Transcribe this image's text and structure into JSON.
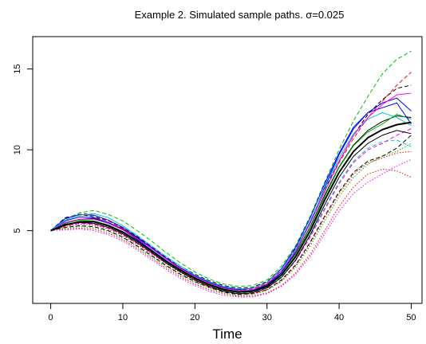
{
  "chart_data": {
    "type": "line",
    "title": "Example 2. Simulated sample paths. σ=0.025",
    "xlabel": "Time",
    "ylabel": "",
    "xlim": [
      -2.5,
      51.5
    ],
    "ylim": [
      0.5,
      17.0
    ],
    "x_ticks": [
      0,
      10,
      20,
      30,
      40,
      50
    ],
    "y_ticks": [
      5,
      10,
      15
    ],
    "grid": false,
    "legend": "none",
    "mean_curve": {
      "style": "solid",
      "color": "#000000",
      "x": [
        0,
        2,
        4,
        6,
        8,
        10,
        12,
        14,
        16,
        18,
        20,
        22,
        24,
        26,
        28,
        30,
        32,
        34,
        36,
        38,
        40,
        42,
        44,
        46,
        48,
        50
      ],
      "y": [
        5.0,
        5.35,
        5.55,
        5.55,
        5.3,
        4.9,
        4.35,
        3.75,
        3.1,
        2.55,
        2.05,
        1.65,
        1.35,
        1.2,
        1.25,
        1.55,
        2.25,
        3.4,
        5.0,
        6.9,
        8.6,
        9.9,
        10.75,
        11.25,
        11.55,
        11.7
      ]
    },
    "series_colors": [
      "#000000",
      "#ff0000",
      "#00bb00",
      "#0000ff",
      "#00cccc",
      "#ff00ff"
    ],
    "series": [
      {
        "color": "#000000",
        "style": "solid",
        "x": [
          0,
          2,
          4,
          6,
          8,
          10,
          12,
          14,
          16,
          18,
          20,
          22,
          24,
          26,
          28,
          30,
          32,
          34,
          36,
          38,
          40,
          42,
          44,
          46,
          48,
          50
        ],
        "y": [
          5.0,
          5.5,
          5.7,
          5.75,
          5.5,
          5.1,
          4.55,
          3.9,
          3.25,
          2.65,
          2.15,
          1.75,
          1.45,
          1.3,
          1.35,
          1.65,
          2.4,
          3.6,
          5.25,
          7.2,
          8.95,
          10.3,
          11.2,
          11.75,
          12.1,
          12.0
        ]
      },
      {
        "color": "#000000",
        "style": "dashed",
        "x": [
          0,
          2,
          4,
          6,
          8,
          10,
          12,
          14,
          16,
          18,
          20,
          22,
          24,
          26,
          28,
          30,
          32,
          34,
          36,
          38,
          40,
          42,
          44,
          46,
          48,
          50
        ],
        "y": [
          5.0,
          5.8,
          6.0,
          5.85,
          5.6,
          5.2,
          4.65,
          4.0,
          3.35,
          2.8,
          2.3,
          1.9,
          1.6,
          1.45,
          1.5,
          1.85,
          2.65,
          3.9,
          5.6,
          7.55,
          9.3,
          10.9,
          12.2,
          13.1,
          13.8,
          14.0
        ]
      },
      {
        "color": "#000000",
        "style": "dashed",
        "x": [
          0,
          2,
          4,
          6,
          8,
          10,
          12,
          14,
          16,
          18,
          20,
          22,
          24,
          26,
          28,
          30,
          32,
          34,
          36,
          38,
          40,
          42,
          44,
          46,
          48,
          50
        ],
        "y": [
          5.0,
          5.2,
          5.3,
          5.25,
          5.0,
          4.6,
          4.05,
          3.45,
          2.85,
          2.3,
          1.85,
          1.5,
          1.2,
          1.05,
          1.1,
          1.35,
          1.95,
          2.9,
          4.3,
          5.9,
          7.4,
          8.6,
          9.3,
          9.6,
          10.1,
          10.9
        ]
      },
      {
        "color": "#ff0000",
        "style": "dashed",
        "x": [
          0,
          2,
          4,
          6,
          8,
          10,
          12,
          14,
          16,
          18,
          20,
          22,
          24,
          26,
          28,
          30,
          32,
          34,
          36,
          38,
          40,
          42,
          44,
          46,
          48,
          50
        ],
        "y": [
          5.0,
          5.6,
          6.1,
          5.95,
          5.6,
          5.15,
          4.6,
          3.95,
          3.3,
          2.7,
          2.2,
          1.8,
          1.5,
          1.35,
          1.4,
          1.75,
          2.55,
          3.8,
          5.5,
          7.45,
          9.2,
          10.7,
          12.0,
          13.0,
          14.0,
          14.8
        ]
      },
      {
        "color": "#ff0000",
        "style": "dotted",
        "x": [
          0,
          2,
          4,
          6,
          8,
          10,
          12,
          14,
          16,
          18,
          20,
          22,
          24,
          26,
          28,
          30,
          32,
          34,
          36,
          38,
          40,
          42,
          44,
          46,
          48,
          50
        ],
        "y": [
          5.0,
          5.1,
          5.15,
          5.1,
          4.85,
          4.45,
          3.9,
          3.3,
          2.7,
          2.15,
          1.7,
          1.35,
          1.1,
          0.95,
          0.95,
          1.15,
          1.6,
          2.4,
          3.55,
          5.0,
          6.5,
          7.7,
          8.5,
          8.8,
          8.7,
          8.3
        ]
      },
      {
        "color": "#ff0000",
        "style": "dotted",
        "x": [
          0,
          2,
          4,
          6,
          8,
          10,
          12,
          14,
          16,
          18,
          20,
          22,
          24,
          26,
          28,
          30,
          32,
          34,
          36,
          38,
          40,
          42,
          44,
          46,
          48,
          50
        ],
        "y": [
          5.0,
          5.25,
          5.4,
          5.35,
          5.1,
          4.7,
          4.15,
          3.55,
          2.95,
          2.4,
          1.9,
          1.5,
          1.25,
          1.1,
          1.1,
          1.35,
          1.9,
          2.85,
          4.2,
          5.8,
          7.3,
          8.5,
          9.2,
          9.5,
          9.8,
          9.9
        ]
      },
      {
        "color": "#00bb00",
        "style": "dashed",
        "x": [
          0,
          2,
          4,
          6,
          8,
          10,
          12,
          14,
          16,
          18,
          20,
          22,
          24,
          26,
          28,
          30,
          32,
          34,
          36,
          38,
          40,
          42,
          44,
          46,
          48,
          50
        ],
        "y": [
          5.0,
          5.7,
          6.1,
          6.25,
          6.0,
          5.6,
          5.0,
          4.35,
          3.65,
          3.0,
          2.45,
          2.0,
          1.7,
          1.55,
          1.6,
          1.95,
          2.8,
          4.1,
          5.9,
          8.0,
          10.0,
          11.8,
          13.3,
          14.7,
          15.6,
          16.1
        ]
      },
      {
        "color": "#00bb00",
        "style": "solid",
        "x": [
          0,
          2,
          4,
          6,
          8,
          10,
          12,
          14,
          16,
          18,
          20,
          22,
          24,
          26,
          28,
          30,
          32,
          34,
          36,
          38,
          40,
          42,
          44,
          46,
          48,
          50
        ],
        "y": [
          5.0,
          5.45,
          5.65,
          5.6,
          5.35,
          4.95,
          4.4,
          3.8,
          3.15,
          2.6,
          2.1,
          1.7,
          1.4,
          1.25,
          1.3,
          1.6,
          2.35,
          3.55,
          5.2,
          7.1,
          8.9,
          10.25,
          11.1,
          11.6,
          12.2,
          11.9
        ]
      },
      {
        "color": "#00bb00",
        "style": "dotted",
        "x": [
          0,
          2,
          4,
          6,
          8,
          10,
          12,
          14,
          16,
          18,
          20,
          22,
          24,
          26,
          28,
          30,
          32,
          34,
          36,
          38,
          40,
          42,
          44,
          46,
          48,
          50
        ],
        "y": [
          5.0,
          5.15,
          5.25,
          5.2,
          4.95,
          4.55,
          4.0,
          3.4,
          2.8,
          2.25,
          1.8,
          1.45,
          1.15,
          1.0,
          1.05,
          1.3,
          1.85,
          2.75,
          4.05,
          5.6,
          7.1,
          8.3,
          9.1,
          9.6,
          9.9,
          10.4
        ]
      },
      {
        "color": "#0000ff",
        "style": "solid",
        "x": [
          0,
          2,
          4,
          6,
          8,
          10,
          12,
          14,
          16,
          18,
          20,
          22,
          24,
          26,
          28,
          30,
          32,
          34,
          36,
          38,
          40,
          42,
          44,
          46,
          48,
          50
        ],
        "y": [
          5.0,
          5.75,
          6.0,
          5.95,
          5.65,
          5.2,
          4.6,
          3.95,
          3.3,
          2.7,
          2.2,
          1.8,
          1.5,
          1.35,
          1.45,
          1.8,
          2.65,
          4.0,
          5.8,
          7.9,
          9.8,
          11.4,
          12.3,
          12.6,
          12.9,
          11.6
        ]
      },
      {
        "color": "#0000ff",
        "style": "solid",
        "x": [
          0,
          2,
          4,
          6,
          8,
          10,
          12,
          14,
          16,
          18,
          20,
          22,
          24,
          26,
          28,
          30,
          32,
          34,
          36,
          38,
          40,
          42,
          44,
          46,
          48,
          50
        ],
        "y": [
          5.0,
          5.6,
          5.85,
          5.8,
          5.5,
          5.05,
          4.45,
          3.8,
          3.15,
          2.55,
          2.05,
          1.65,
          1.35,
          1.2,
          1.3,
          1.6,
          2.4,
          3.7,
          5.5,
          7.7,
          9.7,
          11.3,
          12.3,
          12.9,
          13.2,
          12.4
        ]
      },
      {
        "color": "#00cccc",
        "style": "solid",
        "x": [
          0,
          2,
          4,
          6,
          8,
          10,
          12,
          14,
          16,
          18,
          20,
          22,
          24,
          26,
          28,
          30,
          32,
          34,
          36,
          38,
          40,
          42,
          44,
          46,
          48,
          50
        ],
        "y": [
          5.0,
          5.65,
          5.95,
          6.05,
          5.8,
          5.3,
          4.7,
          4.05,
          3.4,
          2.8,
          2.25,
          1.85,
          1.55,
          1.4,
          1.45,
          1.8,
          2.6,
          3.85,
          5.6,
          7.6,
          9.5,
          11.0,
          11.9,
          12.3,
          12.0,
          11.5
        ]
      },
      {
        "color": "#00cccc",
        "style": "dashed",
        "x": [
          0,
          2,
          4,
          6,
          8,
          10,
          12,
          14,
          16,
          18,
          20,
          22,
          24,
          26,
          28,
          30,
          32,
          34,
          36,
          38,
          40,
          42,
          44,
          46,
          48,
          50
        ],
        "y": [
          5.0,
          5.35,
          5.5,
          5.45,
          5.2,
          4.8,
          4.25,
          3.65,
          3.05,
          2.5,
          2.0,
          1.6,
          1.3,
          1.15,
          1.2,
          1.5,
          2.15,
          3.2,
          4.7,
          6.4,
          8.0,
          9.3,
          10.1,
          10.5,
          10.6,
          10.2
        ]
      },
      {
        "color": "#ff00ff",
        "style": "solid",
        "x": [
          0,
          2,
          4,
          6,
          8,
          10,
          12,
          14,
          16,
          18,
          20,
          22,
          24,
          26,
          28,
          30,
          32,
          34,
          36,
          38,
          40,
          42,
          44,
          46,
          48,
          50
        ],
        "y": [
          5.0,
          5.5,
          5.7,
          5.7,
          5.45,
          5.05,
          4.5,
          3.9,
          3.25,
          2.65,
          2.15,
          1.75,
          1.45,
          1.3,
          1.35,
          1.7,
          2.5,
          3.75,
          5.45,
          7.4,
          9.3,
          10.9,
          12.0,
          12.8,
          13.4,
          13.5
        ]
      },
      {
        "color": "#ff00ff",
        "style": "dashed",
        "x": [
          0,
          2,
          4,
          6,
          8,
          10,
          12,
          14,
          16,
          18,
          20,
          22,
          24,
          26,
          28,
          30,
          32,
          34,
          36,
          38,
          40,
          42,
          44,
          46,
          48,
          50
        ],
        "y": [
          5.0,
          5.3,
          5.45,
          5.4,
          5.15,
          4.75,
          4.2,
          3.6,
          3.0,
          2.45,
          1.95,
          1.55,
          1.25,
          1.1,
          1.15,
          1.45,
          2.1,
          3.15,
          4.6,
          6.3,
          7.9,
          9.2,
          10.0,
          10.4,
          10.9,
          11.3
        ]
      },
      {
        "color": "#ff00ff",
        "style": "dotted",
        "x": [
          0,
          2,
          4,
          6,
          8,
          10,
          12,
          14,
          16,
          18,
          20,
          22,
          24,
          26,
          28,
          30,
          32,
          34,
          36,
          38,
          40,
          42,
          44,
          46,
          48,
          50
        ],
        "y": [
          5.0,
          5.05,
          5.1,
          5.0,
          4.75,
          4.35,
          3.8,
          3.2,
          2.6,
          2.05,
          1.6,
          1.25,
          1.0,
          0.9,
          0.9,
          1.1,
          1.55,
          2.3,
          3.4,
          4.8,
          6.2,
          7.3,
          8.0,
          8.5,
          9.0,
          9.4
        ]
      },
      {
        "color": "#000000",
        "style": "solid",
        "x": [
          0,
          2,
          4,
          6,
          8,
          10,
          12,
          14,
          16,
          18,
          20,
          22,
          24,
          26,
          28,
          30,
          32,
          34,
          36,
          38,
          40,
          42,
          44,
          46,
          48,
          50
        ],
        "y": [
          5.0,
          5.4,
          5.5,
          5.45,
          5.2,
          4.8,
          4.25,
          3.65,
          3.0,
          2.45,
          1.95,
          1.55,
          1.25,
          1.1,
          1.15,
          1.45,
          2.1,
          3.2,
          4.75,
          6.6,
          8.3,
          9.6,
          10.4,
          10.9,
          11.2,
          11.0
        ]
      }
    ]
  }
}
